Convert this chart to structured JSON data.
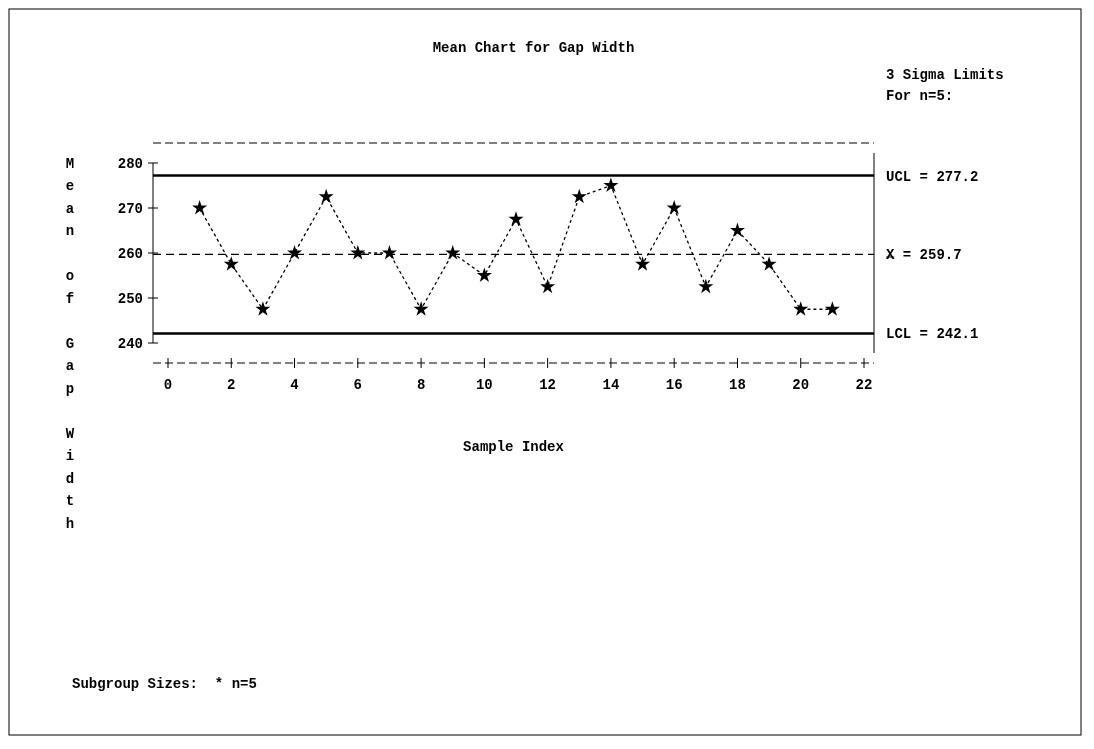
{
  "chart_data": {
    "type": "line",
    "title": "Mean Chart for Gap Width",
    "xlabel": "Sample Index",
    "ylabel": "Mean of Gap Width",
    "x": [
      1,
      2,
      3,
      4,
      5,
      6,
      7,
      8,
      9,
      10,
      11,
      12,
      13,
      14,
      15,
      16,
      17,
      18,
      19,
      20,
      21
    ],
    "series": [
      {
        "color": "#000000",
        "values": [
          270,
          257.5,
          247.5,
          260,
          272.5,
          260,
          260,
          247.5,
          260,
          255,
          267.5,
          252.5,
          272.5,
          275,
          257.5,
          270,
          252.5,
          265,
          257.5,
          247.5,
          247.5
        ]
      }
    ],
    "xlim": [
      0,
      22
    ],
    "xticks": [
      0,
      2,
      4,
      6,
      8,
      10,
      12,
      14,
      16,
      18,
      20,
      22
    ],
    "ylim": [
      240,
      280
    ],
    "yticks": [
      240,
      250,
      260,
      270,
      280
    ],
    "marker": "star",
    "line_style": "dotted",
    "grid": false,
    "ref_lines": [
      {
        "axis": "y",
        "value": 277.2,
        "label": "UCL = 277.2"
      },
      {
        "axis": "y",
        "value": 259.7,
        "label": "X̿ = 259.7",
        "line_style": "dashed"
      },
      {
        "axis": "y",
        "value": 242.1,
        "label": "LCL = 242.1"
      }
    ],
    "annotations": [
      "3 Sigma Limits",
      "For n=5:",
      "Subgroup Sizes:  * n=5"
    ]
  }
}
